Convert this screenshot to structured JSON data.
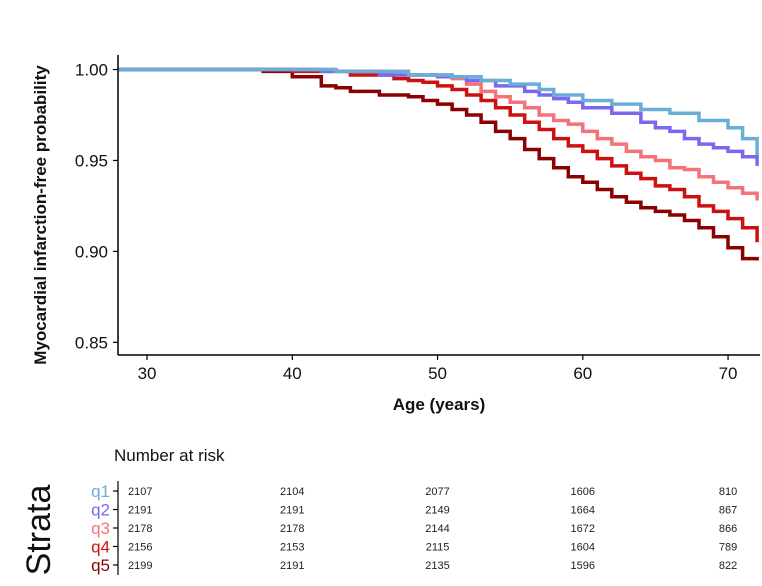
{
  "chart_data": {
    "type": "line",
    "subtype": "step",
    "xlabel": "Age (years)",
    "ylabel": "Myocardial infarction-free probability",
    "xlim": [
      28,
      72.2
    ],
    "ylim": [
      0.843,
      1.008
    ],
    "xticks": [
      30,
      40,
      50,
      60,
      70
    ],
    "yticks": [
      0.85,
      0.9,
      0.95,
      1.0
    ],
    "ytick_labels": [
      "0.85",
      "0.90",
      "0.95",
      "1.00"
    ],
    "grid": false,
    "series": [
      {
        "name": "q1",
        "color": "#6aaed6",
        "x": [
          28,
          43,
          48,
          51,
          53,
          55,
          57,
          58,
          60,
          62,
          64,
          66,
          68,
          70,
          71,
          72
        ],
        "y": [
          1.0,
          0.999,
          0.997,
          0.996,
          0.994,
          0.992,
          0.989,
          0.986,
          0.983,
          0.981,
          0.978,
          0.976,
          0.972,
          0.968,
          0.962,
          0.953
        ]
      },
      {
        "name": "q2",
        "color": "#7b68ee",
        "x": [
          28,
          42,
          46,
          50,
          52,
          54,
          56,
          57,
          58,
          59,
          60,
          62,
          64,
          65,
          66,
          67,
          68,
          69,
          70,
          71,
          72
        ],
        "y": [
          1.0,
          0.999,
          0.997,
          0.996,
          0.994,
          0.991,
          0.988,
          0.986,
          0.984,
          0.982,
          0.979,
          0.976,
          0.971,
          0.968,
          0.966,
          0.962,
          0.959,
          0.957,
          0.955,
          0.952,
          0.947
        ]
      },
      {
        "name": "q3",
        "color": "#f47378",
        "x": [
          28,
          43,
          48,
          51,
          52,
          53,
          54,
          55,
          56,
          57,
          58,
          59,
          60,
          61,
          62,
          63,
          64,
          65,
          66,
          67,
          68,
          69,
          70,
          71,
          72
        ],
        "y": [
          1.0,
          0.999,
          0.997,
          0.995,
          0.992,
          0.988,
          0.985,
          0.982,
          0.979,
          0.975,
          0.972,
          0.97,
          0.966,
          0.962,
          0.959,
          0.955,
          0.952,
          0.95,
          0.946,
          0.945,
          0.941,
          0.938,
          0.935,
          0.932,
          0.928
        ]
      },
      {
        "name": "q4",
        "color": "#cc1111",
        "x": [
          28,
          40,
          44,
          47,
          48,
          49,
          50,
          51,
          52,
          53,
          54,
          55,
          56,
          57,
          58,
          59,
          60,
          61,
          62,
          63,
          64,
          65,
          66,
          67,
          68,
          69,
          70,
          71,
          72
        ],
        "y": [
          1.0,
          0.999,
          0.997,
          0.995,
          0.994,
          0.993,
          0.991,
          0.989,
          0.986,
          0.983,
          0.979,
          0.975,
          0.971,
          0.967,
          0.962,
          0.958,
          0.955,
          0.951,
          0.947,
          0.943,
          0.94,
          0.936,
          0.934,
          0.93,
          0.925,
          0.922,
          0.918,
          0.913,
          0.905
        ]
      },
      {
        "name": "q5",
        "color": "#8b0000",
        "x": [
          28,
          38,
          40,
          42,
          43,
          44,
          46,
          48,
          49,
          50,
          51,
          52,
          53,
          54,
          55,
          56,
          57,
          58,
          59,
          60,
          61,
          62,
          63,
          64,
          65,
          66,
          67,
          68,
          69,
          70,
          71,
          72
        ],
        "y": [
          1.0,
          0.999,
          0.996,
          0.991,
          0.99,
          0.988,
          0.986,
          0.985,
          0.983,
          0.981,
          0.978,
          0.975,
          0.971,
          0.966,
          0.962,
          0.956,
          0.951,
          0.946,
          0.941,
          0.938,
          0.934,
          0.93,
          0.927,
          0.924,
          0.922,
          0.92,
          0.917,
          0.913,
          0.908,
          0.902,
          0.896,
          0.895
        ]
      }
    ],
    "risk_table": {
      "title": "Number at risk",
      "strata_title": "Strata",
      "x": [
        30,
        40,
        50,
        60,
        70
      ],
      "rows": [
        {
          "name": "q1",
          "values": [
            "2107",
            "2104",
            "2077",
            "1606",
            "810"
          ]
        },
        {
          "name": "q2",
          "values": [
            "2191",
            "2191",
            "2149",
            "1664",
            "867"
          ]
        },
        {
          "name": "q3",
          "values": [
            "2178",
            "2178",
            "2144",
            "1672",
            "866"
          ]
        },
        {
          "name": "q4",
          "values": [
            "2156",
            "2153",
            "2115",
            "1604",
            "789"
          ]
        },
        {
          "name": "q5",
          "values": [
            "2199",
            "2191",
            "2135",
            "1596",
            "822"
          ]
        }
      ]
    }
  }
}
